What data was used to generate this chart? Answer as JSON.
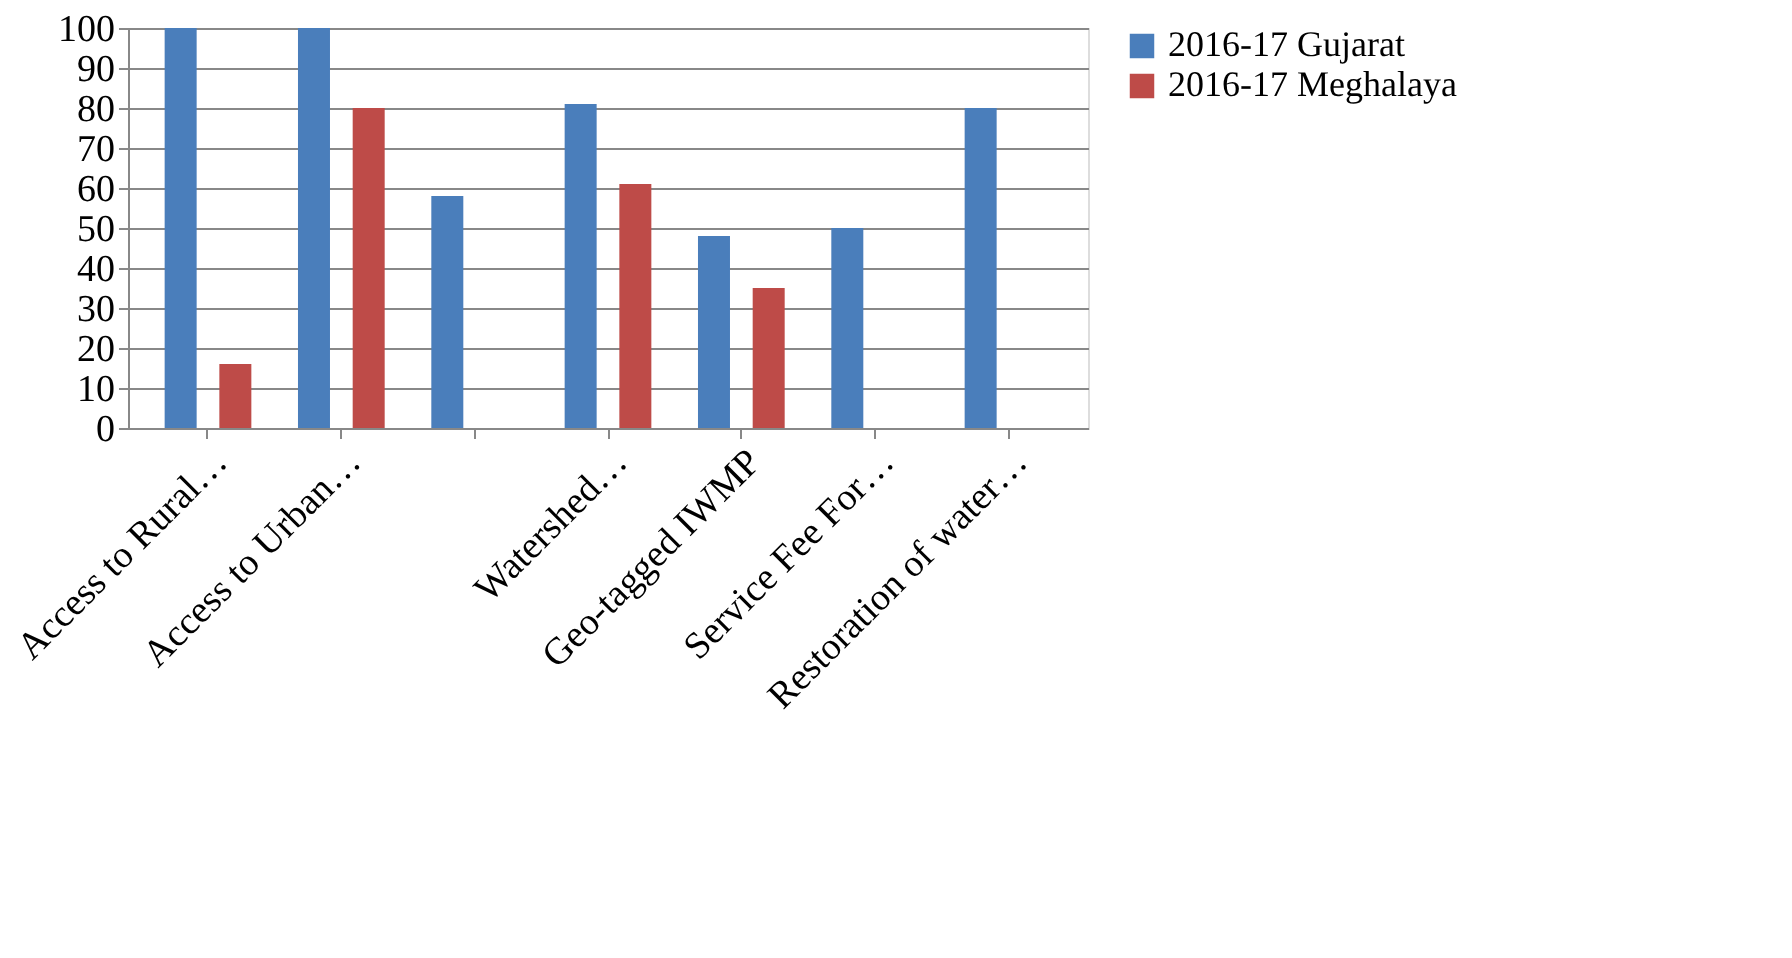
{
  "chart_data": {
    "type": "bar",
    "categories": [
      "Access to Rural…",
      "Access to Urban…",
      null,
      "Watershed…",
      "Geo-tagged IWMP",
      "Service Fee For…",
      "Restoration of water…"
    ],
    "series": [
      {
        "name": "2016-17 Gujarat",
        "color": "#4a7ebb",
        "values": [
          100,
          100,
          58,
          81,
          48,
          50,
          80
        ]
      },
      {
        "name": "2016-17 Meghalaya",
        "color": "#be4b48",
        "values": [
          16,
          80,
          0,
          61,
          35,
          0,
          0
        ]
      }
    ],
    "ylim": [
      0,
      100
    ],
    "yticks": [
      0,
      10,
      20,
      30,
      40,
      50,
      60,
      70,
      80,
      90,
      100
    ],
    "grid": "y",
    "legend": "right"
  }
}
